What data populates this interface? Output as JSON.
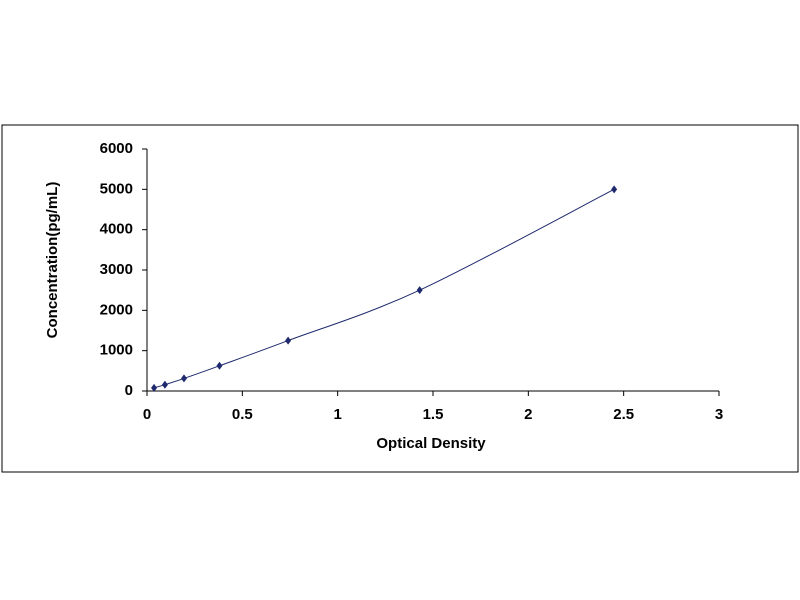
{
  "chart_data": {
    "type": "scatter",
    "x_label": "Optical Density",
    "y_label": "Concentration(pg/mL)",
    "x": [
      0.037,
      0.094,
      0.194,
      0.38,
      0.74,
      1.43,
      2.45
    ],
    "values": [
      78,
      156,
      312,
      625,
      1250,
      2500,
      5000
    ],
    "color": "#1f2a6e",
    "smooth_line": true,
    "xlim": [
      0,
      3
    ],
    "xticks": [
      0,
      0.5,
      1,
      1.5,
      2,
      2.5,
      3
    ],
    "ylim": [
      0,
      6000
    ],
    "yticks": [
      0,
      1000,
      2000,
      3000,
      4000,
      5000,
      6000
    ],
    "grid": false
  }
}
